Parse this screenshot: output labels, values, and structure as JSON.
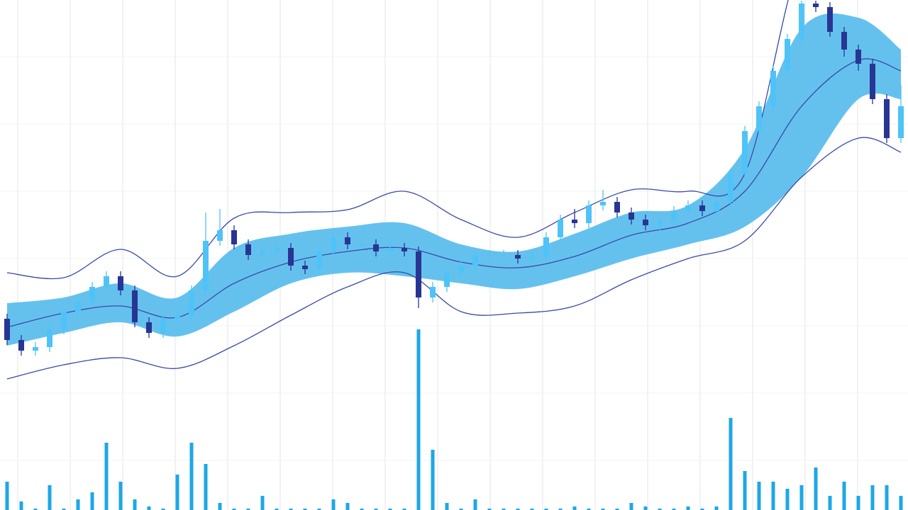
{
  "chart_data": {
    "type": "candlestick",
    "x": [
      0,
      1,
      2,
      3,
      4,
      5,
      6,
      7,
      8,
      9,
      10,
      11,
      12,
      13,
      14,
      15,
      16,
      17,
      18,
      19,
      20,
      21,
      22,
      23,
      24,
      25,
      26,
      27,
      28,
      29,
      30,
      31,
      32,
      33,
      34,
      35,
      36,
      37,
      38,
      39,
      40,
      41,
      42,
      43,
      44,
      45,
      46,
      47,
      48,
      49,
      50,
      51,
      52,
      53,
      54,
      55,
      56,
      57,
      58,
      59,
      60,
      61,
      62,
      63
    ],
    "xlim": [
      -0.5,
      63.5
    ],
    "ylim": [
      0,
      720
    ],
    "open": [
      270,
      240,
      225,
      230,
      255,
      280,
      295,
      315,
      330,
      310,
      265,
      250,
      270,
      275,
      310,
      380,
      395,
      375,
      360,
      365,
      370,
      345,
      340,
      365,
      385,
      375,
      375,
      365,
      370,
      365,
      300,
      315,
      335,
      345,
      360,
      360,
      360,
      355,
      358,
      385,
      410,
      405,
      430,
      435,
      420,
      410,
      402,
      408,
      422,
      430,
      422,
      435,
      475,
      535,
      570,
      620,
      665,
      715,
      710,
      675,
      650,
      630,
      580,
      525
    ],
    "high": [
      277,
      247,
      237,
      262,
      287,
      302,
      322,
      337,
      337,
      317,
      272,
      277,
      282,
      317,
      420,
      425,
      402,
      382,
      372,
      377,
      377,
      352,
      372,
      392,
      392,
      382,
      382,
      377,
      377,
      372,
      322,
      342,
      352,
      367,
      367,
      367,
      367,
      365,
      392,
      417,
      425,
      437,
      452,
      442,
      427,
      417,
      415,
      429,
      437,
      437,
      442,
      482,
      542,
      577,
      627,
      672,
      719,
      719,
      717,
      682,
      657,
      637,
      587,
      600
    ],
    "low": [
      233,
      218,
      218,
      223,
      248,
      273,
      288,
      308,
      303,
      258,
      243,
      243,
      263,
      268,
      303,
      373,
      368,
      353,
      353,
      358,
      338,
      333,
      333,
      358,
      368,
      368,
      358,
      358,
      358,
      285,
      293,
      308,
      328,
      338,
      353,
      353,
      348,
      348,
      351,
      378,
      398,
      398,
      423,
      413,
      403,
      395,
      395,
      401,
      415,
      415,
      415,
      428,
      468,
      528,
      563,
      613,
      658,
      703,
      668,
      640,
      620,
      573,
      518,
      518
    ],
    "close": [
      240,
      225,
      230,
      255,
      280,
      295,
      315,
      330,
      310,
      265,
      250,
      270,
      275,
      310,
      380,
      395,
      375,
      360,
      365,
      370,
      345,
      340,
      365,
      385,
      375,
      375,
      365,
      370,
      365,
      300,
      315,
      335,
      345,
      360,
      360,
      360,
      355,
      358,
      385,
      410,
      405,
      430,
      435,
      420,
      410,
      402,
      408,
      422,
      430,
      422,
      435,
      475,
      535,
      570,
      620,
      665,
      715,
      710,
      675,
      650,
      630,
      580,
      525,
      570
    ],
    "up_color": "#4fc3f7",
    "down_color": "#283593",
    "grid": true,
    "volume": {
      "values": [
        40,
        12,
        2,
        35,
        2,
        15,
        25,
        95,
        40,
        15,
        5,
        2,
        50,
        95,
        65,
        10,
        2,
        2,
        20,
        2,
        2,
        2,
        2,
        15,
        10,
        2,
        2,
        2,
        2,
        255,
        85,
        10,
        2,
        15,
        2,
        2,
        2,
        2,
        2,
        2,
        5,
        2,
        2,
        2,
        10,
        5,
        2,
        2,
        5,
        2,
        5,
        130,
        55,
        40,
        40,
        30,
        35,
        60,
        20,
        40,
        20,
        35,
        35,
        20
      ],
      "ylim": [
        0,
        300
      ],
      "color": "#1ea7e6"
    },
    "bands": {
      "x": [
        0,
        4,
        8,
        12,
        16,
        20,
        24,
        28,
        32,
        36,
        40,
        44,
        48,
        52,
        56,
        60,
        63
      ],
      "middle": [
        258,
        278,
        288,
        272,
        320,
        350,
        365,
        370,
        350,
        342,
        358,
        388,
        405,
        450,
        570,
        635,
        620
      ],
      "inner_upper": [
        292,
        300,
        320,
        300,
        370,
        390,
        400,
        405,
        375,
        365,
        390,
        420,
        430,
        510,
        680,
        695,
        650
      ],
      "inner_lower": [
        232,
        250,
        265,
        245,
        280,
        320,
        335,
        330,
        320,
        312,
        330,
        355,
        375,
        400,
        470,
        580,
        580
      ],
      "outer_upper": [
        335,
        328,
        368,
        330,
        412,
        420,
        424,
        450,
        410,
        385,
        420,
        452,
        450,
        475,
        780,
        820,
        780
      ],
      "outer_lower": [
        185,
        205,
        215,
        200,
        232,
        275,
        315,
        335,
        280,
        278,
        288,
        325,
        355,
        380,
        470,
        525,
        505
      ],
      "fill": "#64c1ee",
      "line_color": "#3949ab"
    }
  }
}
